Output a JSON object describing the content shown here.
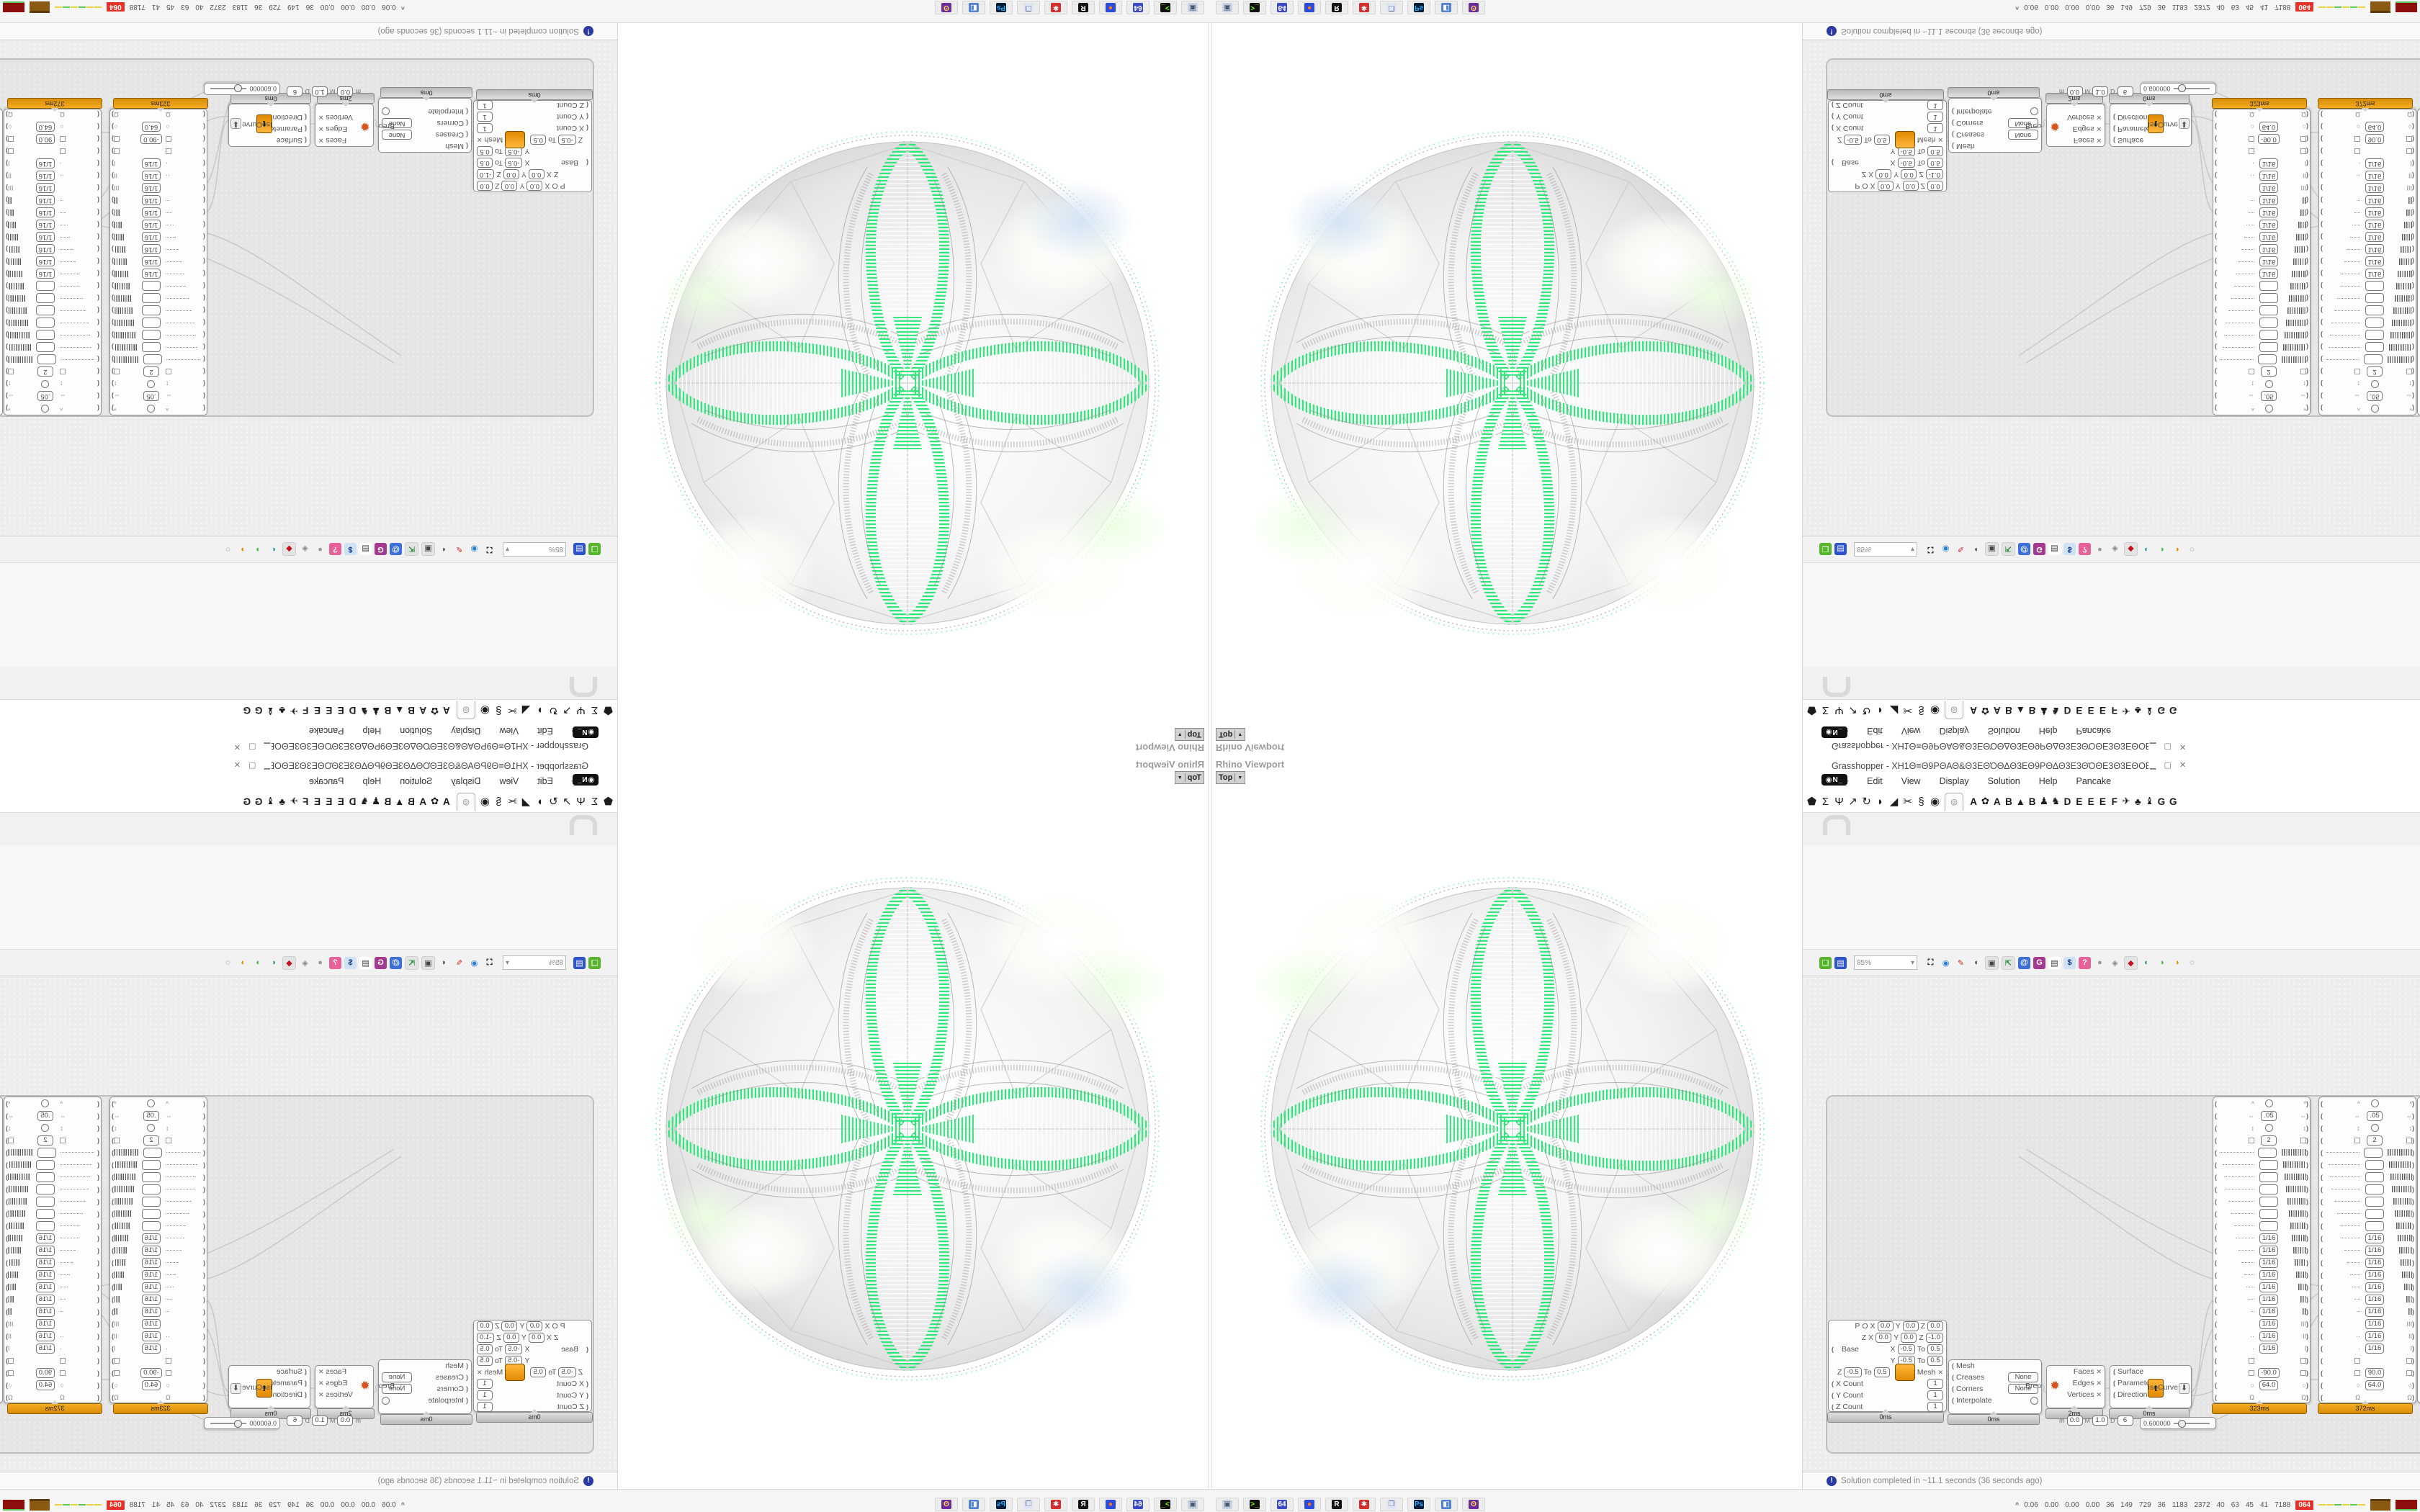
{
  "colors": {
    "green": "#2ee879",
    "profiler_orange": "#e8960c",
    "wire": "#c9c9c9"
  },
  "viewport": {
    "title": "Rhino Viewport",
    "tab_label": "Top",
    "tab_arrow": "▼"
  },
  "gh": {
    "window_title": "Grasshopper - XH1Θ≡Θ9ΡΘΑΘ&Θ3ΕΘΌΘΔΘ3ΕΘ9ΡΘΔΘ3Ε3ΘΌΘΕ3Θ3ΕΘΟΕΘΝΝΘ3ΕΘ&Θ3ΕΘΘΘοΘΔΘΌΘ3ΕΘ&ΘΠΘ+ΘΔΘШΘ&ΘΠΘΟΕΘΟΘΟΘΟΘΟΘΟΘΟΘΟΘΟ⊐.",
    "window_buttons": "▁ ▢ ✕",
    "menus": [
      "File",
      "Edit",
      "View",
      "Display",
      "Solution",
      "Help",
      "Pancake"
    ],
    "ribbon_category_icons": [
      {
        "name": "params-tab",
        "glyph": "⬟"
      },
      {
        "name": "maths-tab",
        "glyph": "Σ"
      },
      {
        "name": "sets-tab",
        "glyph": "Ψ"
      },
      {
        "name": "vector-tab",
        "glyph": "↗"
      },
      {
        "name": "curve-tab",
        "glyph": "↻"
      },
      {
        "name": "surface-tab",
        "glyph": "◗"
      },
      {
        "name": "mesh-tab",
        "glyph": "◢"
      },
      {
        "name": "intersect-tab",
        "glyph": "✂"
      },
      {
        "name": "transform-tab",
        "glyph": "§"
      },
      {
        "name": "display-tab",
        "glyph": "◉"
      }
    ],
    "selected_tab_glyph": "◎",
    "ribbon_letter_tabs": [
      "A",
      "✿",
      "A",
      "B",
      "▲",
      "B",
      "♟",
      "♞",
      "D",
      "E",
      "E",
      "E",
      "F",
      "✈",
      "♣",
      "♝",
      "G",
      "G"
    ],
    "badge_text": "◉N_",
    "zoom_value": "85%",
    "zoom_arrow": "▾",
    "toolbar_icons": [
      {
        "name": "open-file-icon",
        "glyph": "❏",
        "fg": "#fff",
        "bg": "#58b52e"
      },
      {
        "name": "save-file-icon",
        "glyph": "▤",
        "fg": "#fff",
        "bg": "#2f54c9"
      },
      {
        "name": "zoom-box",
        "glyph": "",
        "fg": "",
        "bg": ""
      },
      {
        "name": "zoom-extents-icon",
        "glyph": "⛶",
        "fg": "#111",
        "bg": "transparent"
      },
      {
        "name": "preview-eye-icon",
        "glyph": "◉",
        "fg": "#2a7fd4",
        "bg": "transparent"
      },
      {
        "name": "sketch-pen-icon",
        "glyph": "✎",
        "fg": "#c62828",
        "bg": "transparent"
      },
      {
        "name": "camera-icon",
        "glyph": "◖",
        "fg": "#333",
        "bg": "transparent"
      },
      {
        "name": "viewport-camera-icon",
        "glyph": "▣",
        "fg": "#444",
        "bg": "#e4e4e4"
      },
      {
        "name": "axes-widget-icon",
        "glyph": "⇱",
        "fg": "#1c8a2e",
        "bg": "#e4e4e4"
      },
      {
        "name": "cookie-icon",
        "glyph": "@",
        "fg": "#fff",
        "bg": "#3d6fd6"
      },
      {
        "name": "gha-icon",
        "glyph": "G",
        "fg": "#fff",
        "bg": "#a33b8e"
      },
      {
        "name": "notes-icon",
        "glyph": "▤",
        "fg": "#333",
        "bg": "#fff"
      },
      {
        "name": "finder-icon",
        "glyph": "$",
        "fg": "#1a3f8a",
        "bg": "#cfe2f5"
      },
      {
        "name": "help-box-icon",
        "glyph": "?",
        "fg": "#fff",
        "bg": "#e8629a"
      },
      {
        "name": "sphere-gray-icon",
        "glyph": "●",
        "fg": "#9a9a9a",
        "bg": "transparent"
      },
      {
        "name": "diamond-white-icon",
        "glyph": "◈",
        "fg": "#888",
        "bg": "transparent"
      },
      {
        "name": "diamond-red-icon",
        "glyph": "◆",
        "fg": "#c1121f",
        "bg": "#e4e4e4"
      },
      {
        "name": "preview-wire-icon",
        "glyph": "◐",
        "fg": "#1d8f8a",
        "bg": "transparent"
      },
      {
        "name": "preview-shaded-icon",
        "glyph": "◑",
        "fg": "#3fae3f",
        "bg": "transparent"
      },
      {
        "name": "preview-render-icon",
        "glyph": "◑",
        "fg": "#e08a00",
        "bg": "transparent"
      },
      {
        "name": "selection-dashed-icon",
        "glyph": "◌",
        "fg": "#666",
        "bg": "transparent"
      }
    ],
    "status_icon": "!",
    "status_text": "Solution completed in ~11.1 seconds (36 seconds ago)"
  },
  "nodes": {
    "mesh_box": {
      "p_label": "P",
      "plane_rows": [
        {
          "pre": "O",
          "items": [
            [
              "X",
              "0.0"
            ],
            [
              "Y",
              "0.0"
            ],
            [
              "Z",
              "0.0"
            ]
          ]
        },
        {
          "pre": "Z",
          "items": [
            [
              "X",
              "0.0"
            ],
            [
              "Y",
              "0.0"
            ],
            [
              "Z",
              "-1.0"
            ]
          ]
        }
      ],
      "base_label": "Base",
      "range_rows": [
        {
          "axis": "X",
          "min": "-0.5",
          "to": "To",
          "max": "0.5"
        },
        {
          "axis": "Y",
          "min": "-0.5",
          "to": "To",
          "max": "0.5"
        },
        {
          "axis": "Z",
          "min": "-0.5",
          "to": "To",
          "max": "0.5"
        }
      ],
      "count_rows": [
        {
          "label": "X Count",
          "value": "1"
        },
        {
          "label": "Y Count",
          "value": "1"
        },
        {
          "label": "Z Count",
          "value": "1"
        }
      ],
      "output_label": "Mesh",
      "profiler": "0ms"
    },
    "subd": {
      "rows": [
        {
          "label": "Mesh",
          "value": null
        },
        {
          "label": "Creases",
          "value": "None"
        },
        {
          "label": "Corners",
          "value": "None"
        },
        {
          "label": "Interpolate",
          "value": "○"
        }
      ],
      "output_label": "SubD",
      "profiler": "0ms"
    },
    "decon_brep": {
      "input_label": "Brep",
      "outputs": [
        "Faces",
        "Edges",
        "Vertices"
      ],
      "profiler": "2ms"
    },
    "isocurve": {
      "inputs": [
        "Surface",
        "Parameter",
        "Direction"
      ],
      "icon_letter": "t",
      "output_label": "IsoCurve",
      "profiler": "0ms"
    },
    "mini_row": {
      "m": "0.0",
      "M": "1.0",
      "D": "6"
    },
    "slider": {
      "value": "0.600000"
    },
    "tall_components": {
      "shared_rows": [
        {
          "l": "^",
          "c": "circle",
          "r": "*"
        },
        {
          "l": "⇔",
          "c": "box:.05",
          "r": "⇔"
        },
        {
          "l": "↕",
          "c": "circle",
          "r": "↕"
        },
        {
          "l": "▫",
          "c": "box:2",
          "r": "▫"
        },
        {
          "l": "dots:46",
          "c": "box:",
          "r": "bars:34"
        },
        {
          "l": "dots:44",
          "c": "box:",
          "r": "bars:32"
        },
        {
          "l": "dots:42",
          "c": "box:",
          "r": "bars:30"
        },
        {
          "l": "dots:40",
          "c": "box:",
          "r": "bars:28"
        },
        {
          "l": "dots:36",
          "c": "box:",
          "r": "bars:26"
        },
        {
          "l": "dots:32",
          "c": "box:",
          "r": "bars:24"
        },
        {
          "l": "dots:28",
          "c": "box:",
          "r": "bars:22"
        },
        {
          "l": "dots:26",
          "c": "box:1/16",
          "r": "bars:20"
        },
        {
          "l": "dots:22",
          "c": "box:1/16",
          "r": "bars:18"
        },
        {
          "l": "dots:18",
          "c": "box:1/16",
          "r": "bars:16"
        },
        {
          "l": "dots:14",
          "c": "box:1/16",
          "r": "bars:14"
        },
        {
          "l": "dots:11",
          "c": "box:1/16",
          "r": "bars:11"
        },
        {
          "l": "dots:8",
          "c": "box:1/16",
          "r": "bars:8"
        },
        {
          "l": "dots:5",
          "c": "box:1/16",
          "r": "bars:5"
        },
        {
          "l": "",
          "c": "box:1/16",
          "r": "III"
        },
        {
          "l": "··",
          "c": "box:1/16",
          "r": "II"
        },
        {
          "l": "·",
          "c": "box:1/16",
          "r": "I"
        },
        {
          "l": "▫",
          "c": "",
          "r": "▫"
        },
        {
          "l": "▫",
          "c": "box:ANGLE",
          "r": "▫"
        },
        {
          "l": "○",
          "c": "box:64.0",
          "r": "○"
        },
        {
          "l": "Ω",
          "c": "",
          "r": "Ω"
        }
      ],
      "left": {
        "angle": "-90.0",
        "profiler": "323ms"
      },
      "right": {
        "angle": "90.0",
        "profiler": "372ms"
      }
    }
  },
  "taskbar": {
    "apps": [
      {
        "name": "app-system-monitor",
        "glyph": "▣",
        "fg": "#44566e",
        "bg": "#c9d4e2"
      },
      {
        "name": "app-terminal",
        "glyph": ">_",
        "fg": "#7CFC00",
        "bg": "#101010"
      },
      {
        "name": "app-floppy-64",
        "glyph": "64",
        "fg": "#fff",
        "bg": "#3b49c6"
      },
      {
        "name": "app-firefox",
        "glyph": "●",
        "fg": "#ff7b1c",
        "bg": "#2b4bdd"
      },
      {
        "name": "app-rhino",
        "glyph": "R",
        "fg": "#fff",
        "bg": "#111"
      },
      {
        "name": "app-red-gear",
        "glyph": "✱",
        "fg": "#fff",
        "bg": "#d32f2f"
      },
      {
        "name": "app-window",
        "glyph": "❐",
        "fg": "#4a5b8c",
        "bg": "#dfe5f2"
      },
      {
        "name": "app-photoshop",
        "glyph": "Ps",
        "fg": "#31a8ff",
        "bg": "#001e36"
      },
      {
        "name": "app-blue-panel",
        "glyph": "◧",
        "fg": "#fff",
        "bg": "#4f83d4"
      },
      {
        "name": "app-owl",
        "glyph": "ʘ",
        "fg": "#ffd54f",
        "bg": "#6a2d9e"
      }
    ],
    "chevron": "^",
    "stats": [
      "0.06",
      "0.00",
      "0.00",
      "0.00",
      "36",
      "149",
      "729",
      "36",
      "1183",
      "2372",
      "40",
      "63",
      "45",
      "41",
      "7188"
    ],
    "red_badge": "064"
  }
}
